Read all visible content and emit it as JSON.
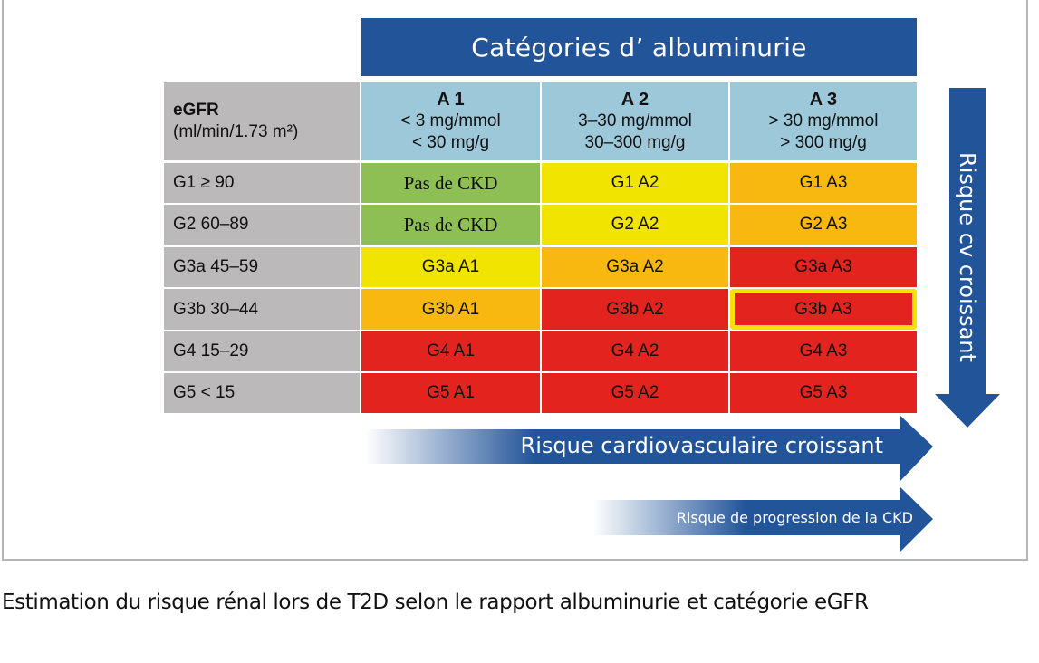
{
  "title": "Catégories d’ albuminurie",
  "header": {
    "egfr_label": "eGFR",
    "egfr_unit": "(ml/min/1.73 m²)",
    "columns": [
      {
        "name": "A 1",
        "l1": "< 3 mg/mmol",
        "l2": "< 30 mg/g"
      },
      {
        "name": "A 2",
        "l1": "3–30 mg/mmol",
        "l2": "30–300 mg/g"
      },
      {
        "name": "A 3",
        "l1": "> 30 mg/mmol",
        "l2": "> 300 mg/g"
      }
    ]
  },
  "rows": [
    {
      "label": "G1 ≥ 90",
      "cells": [
        "Pas de CKD",
        "G1 A2",
        "G1 A3"
      ]
    },
    {
      "label": "G2 60–89",
      "cells": [
        "Pas de CKD",
        "G2 A2",
        "G2 A3"
      ]
    },
    {
      "label": "G3a 45–59",
      "cells": [
        "G3a A1",
        "G3a A2",
        "G3a A3"
      ]
    },
    {
      "label": "G3b 30–44",
      "cells": [
        "G3b A1",
        "G3b A2",
        "G3b A3"
      ]
    },
    {
      "label": "G4 15–29",
      "cells": [
        "G4 A1",
        "G4 A2",
        "G4 A3"
      ]
    },
    {
      "label": "G5 < 15",
      "cells": [
        "G5 A1",
        "G5 A2",
        "G5 A3"
      ]
    }
  ],
  "colors": {
    "green": "#8dbf55",
    "yellow": "#f1e400",
    "orange": "#f9b80f",
    "red": "#e3231d",
    "blue": "#225499",
    "highlight": "#f4e300"
  },
  "arrows": {
    "vertical": "Risque cv croissant",
    "cv": "Risque cardiovasculaire croissant",
    "ckd": "Risque de progression de la CKD"
  },
  "caption": "Estimation du risque rénal lors de T2D selon le rapport albuminurie et catégorie eGFR"
}
